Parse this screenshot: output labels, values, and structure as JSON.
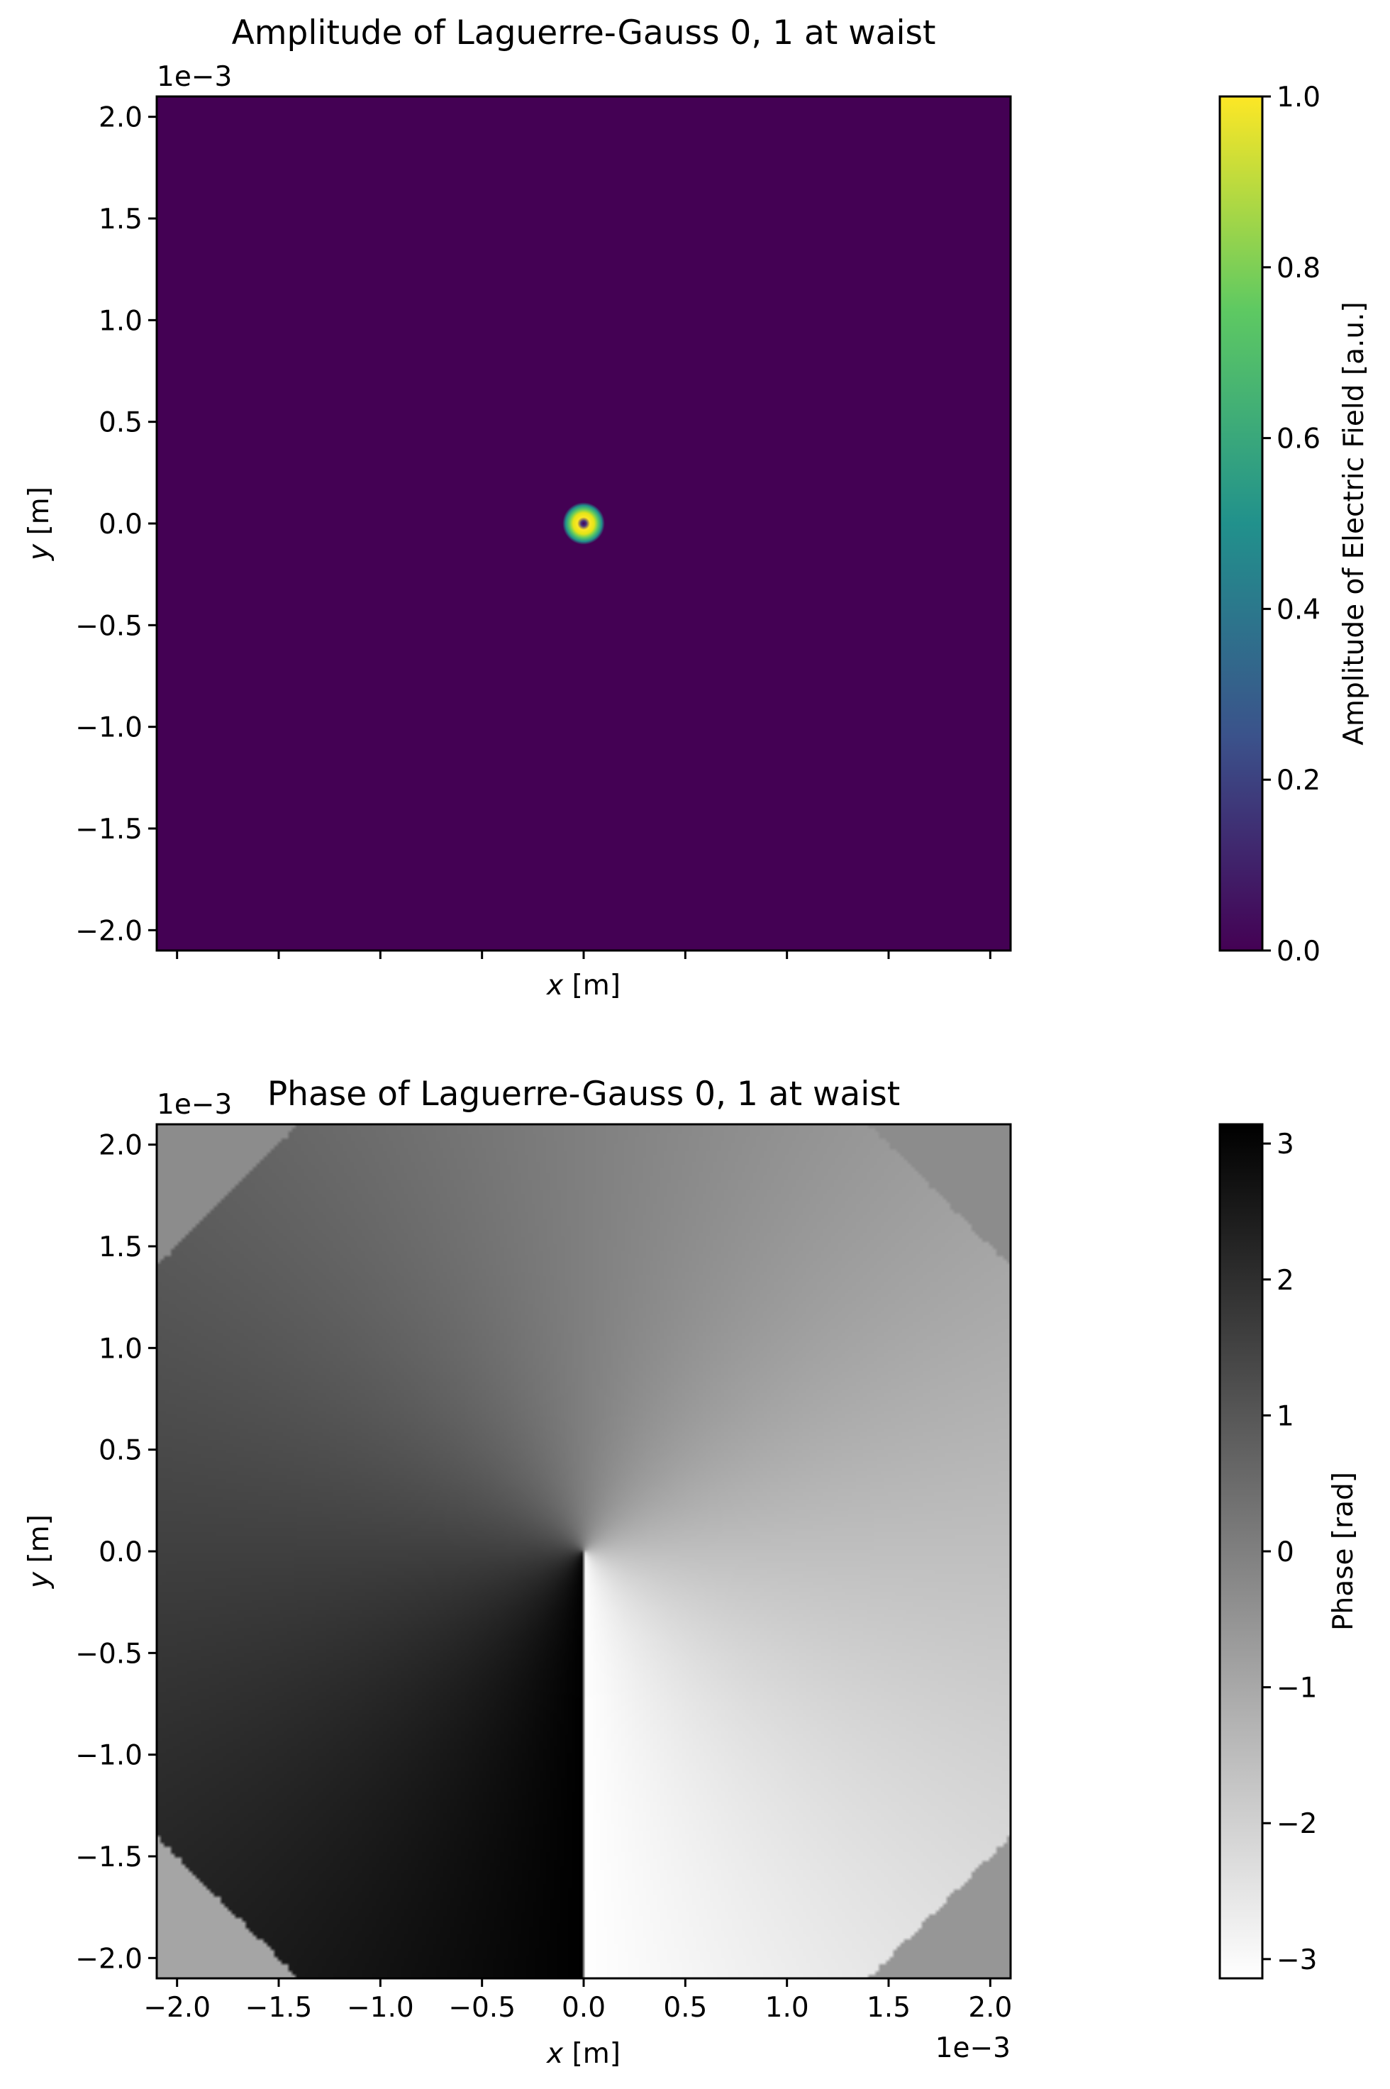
{
  "chart_data": [
    {
      "type": "heatmap",
      "title": "Amplitude of Laguerre-Gauss 0, 1 at waist",
      "xlabel_var": "x",
      "xlabel_unit": " [m]",
      "ylabel_var": "y",
      "ylabel_unit": " [m]",
      "y_offset_label": "1e−3",
      "xlim": [
        -2.1,
        2.1
      ],
      "ylim": [
        -2.1,
        2.1
      ],
      "axis_multiplier": 0.001,
      "x_ticks": [
        -2.0,
        -1.5,
        -1.0,
        -0.5,
        0.0,
        0.5,
        1.0,
        1.5,
        2.0
      ],
      "y_ticks": [
        "2.0",
        "1.5",
        "1.0",
        "0.5",
        "0.0",
        "−0.5",
        "−1.0",
        "−1.5",
        "−2.0"
      ],
      "y_tick_values": [
        2.0,
        1.5,
        1.0,
        0.5,
        0.0,
        -0.5,
        -1.0,
        -1.5,
        -2.0
      ],
      "x_tick_labels_shown": false,
      "colormap": "viridis",
      "colormap_stops": [
        "#440154",
        "#3b528b",
        "#21918c",
        "#5ec962",
        "#fde725"
      ],
      "beam_ring_radius": 0.1,
      "colorbar": {
        "label": "Amplitude of Electric Field [a.u.]",
        "range": [
          0.0,
          1.0
        ],
        "ticks": [
          "1.0",
          "0.8",
          "0.6",
          "0.4",
          "0.2",
          "0.0"
        ],
        "tick_values": [
          1.0,
          0.8,
          0.6,
          0.4,
          0.2,
          0.0
        ]
      }
    },
    {
      "type": "heatmap",
      "title": "Phase of Laguerre-Gauss 0, 1 at waist",
      "xlabel_var": "x",
      "xlabel_unit": " [m]",
      "ylabel_var": "y",
      "ylabel_unit": " [m]",
      "y_offset_label": "1e−3",
      "x_offset_label": "1e−3",
      "xlim": [
        -2.1,
        2.1
      ],
      "ylim": [
        -2.1,
        2.1
      ],
      "axis_multiplier": 0.001,
      "x_ticks": [
        "−2.0",
        "−1.5",
        "−1.0",
        "−0.5",
        "0.0",
        "0.5",
        "1.0",
        "1.5",
        "2.0"
      ],
      "x_tick_values": [
        -2.0,
        -1.5,
        -1.0,
        -0.5,
        0.0,
        0.5,
        1.0,
        1.5,
        2.0
      ],
      "y_ticks": [
        "2.0",
        "1.5",
        "1.0",
        "0.5",
        "0.0",
        "−0.5",
        "−1.0",
        "−1.5",
        "−2.0"
      ],
      "y_tick_values": [
        2.0,
        1.5,
        1.0,
        0.5,
        0.0,
        -0.5,
        -1.0,
        -1.5,
        -2.0
      ],
      "colormap": "gray_r",
      "colormap_stops": [
        "#ffffff",
        "#000000"
      ],
      "phase_wraps_at_angle_deg": 90,
      "colorbar": {
        "label": "Phase [rad]",
        "range": [
          -3.14159,
          3.14159
        ],
        "ticks": [
          "3",
          "2",
          "1",
          "0",
          "−1",
          "−2",
          "−3"
        ],
        "tick_values": [
          3,
          2,
          1,
          0,
          -1,
          -2,
          -3
        ]
      }
    }
  ]
}
